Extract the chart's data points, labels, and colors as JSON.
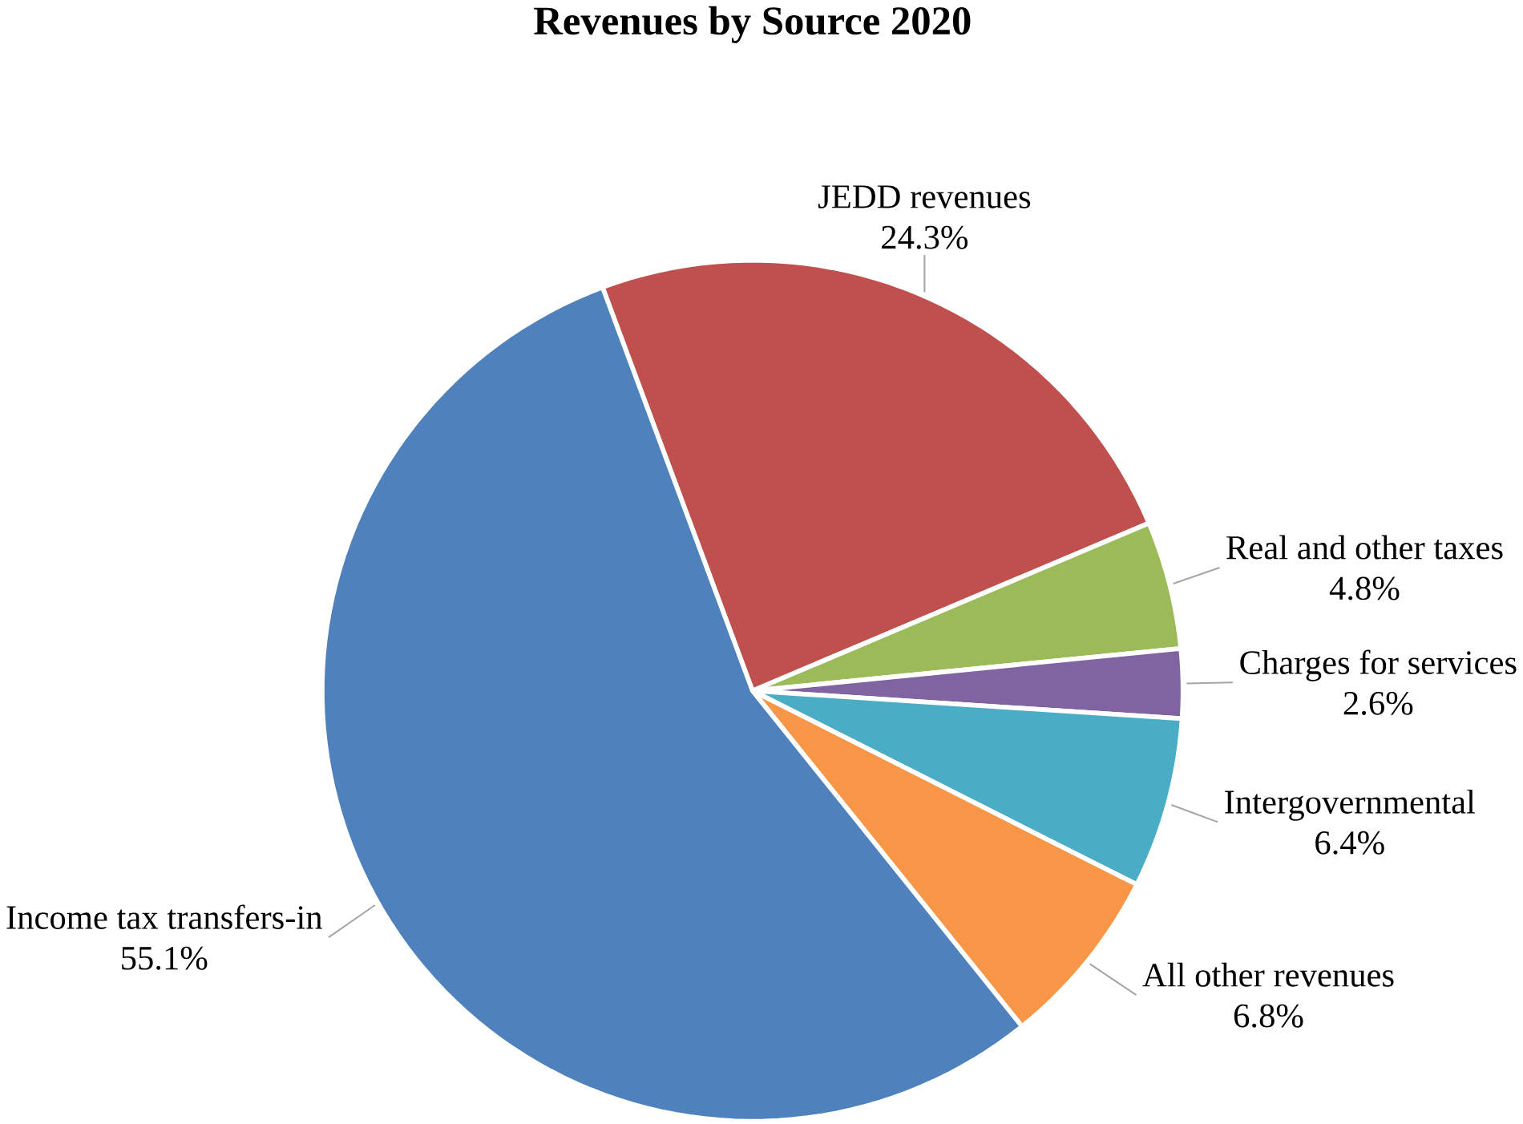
{
  "chart_data": {
    "type": "pie",
    "title": "Revenues by Source 2020",
    "categories": [
      "JEDD revenues",
      "Real and other taxes",
      "Charges for services",
      "Intergovernmental",
      "All other revenues",
      "Income tax transfers-in"
    ],
    "values": [
      24.3,
      4.8,
      2.6,
      6.4,
      6.8,
      55.1
    ],
    "value_labels": [
      "24.3%",
      "4.8%",
      "2.6%",
      "6.4%",
      "6.8%",
      "55.1%"
    ],
    "colors": [
      "#c0504d",
      "#9bbb59",
      "#8064a2",
      "#4bacc6",
      "#f79646",
      "#4f81bd"
    ]
  }
}
